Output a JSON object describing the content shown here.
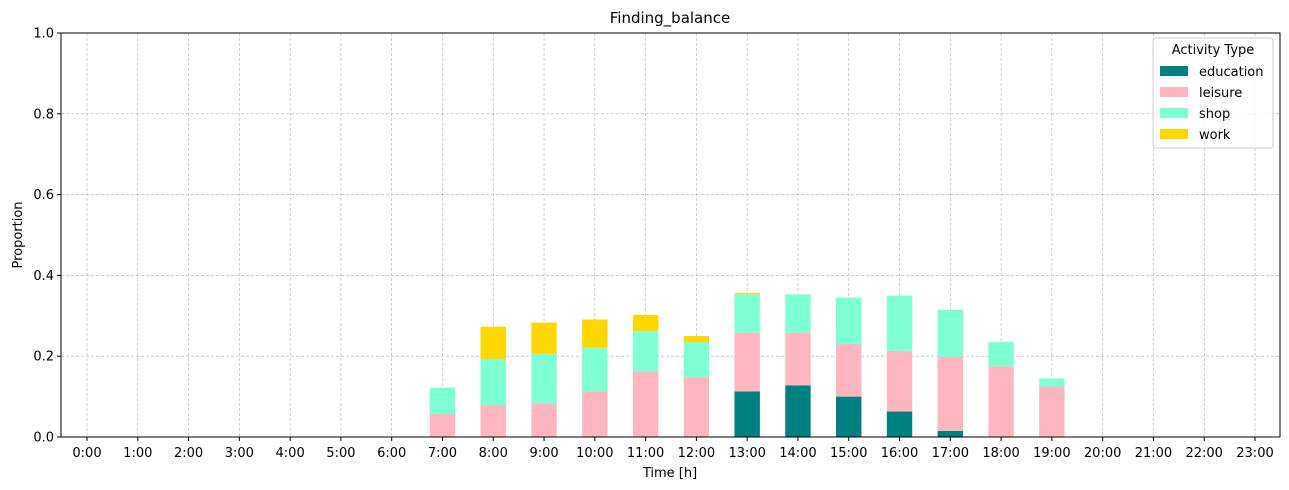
{
  "chart_data": {
    "type": "bar",
    "stacked": true,
    "title": "Finding_balance",
    "xlabel": "Time [h]",
    "ylabel": "Proportion",
    "ylim": [
      0,
      1.0
    ],
    "yticks": [
      "0.0",
      "0.2",
      "0.4",
      "0.6",
      "0.8",
      "1.0"
    ],
    "grid": true,
    "legend": {
      "title": "Activity Type",
      "placement": "top-right"
    },
    "categories": [
      "0:00",
      "1:00",
      "2:00",
      "3:00",
      "4:00",
      "5:00",
      "6:00",
      "7:00",
      "8:00",
      "9:00",
      "10:00",
      "11:00",
      "12:00",
      "13:00",
      "14:00",
      "15:00",
      "16:00",
      "17:00",
      "18:00",
      "19:00",
      "20:00",
      "21:00",
      "22:00",
      "23:00"
    ],
    "series": [
      {
        "name": "education",
        "color": "#008080",
        "values": [
          0,
          0,
          0,
          0,
          0,
          0,
          0,
          0,
          0,
          0,
          0,
          0,
          0,
          0.113,
          0.128,
          0.1,
          0.063,
          0.015,
          0,
          0,
          0,
          0,
          0,
          0
        ]
      },
      {
        "name": "leisure",
        "color": "#ffb6c1",
        "values": [
          0,
          0,
          0,
          0,
          0,
          0,
          0,
          0.057,
          0.078,
          0.083,
          0.113,
          0.162,
          0.148,
          0.145,
          0.13,
          0.13,
          0.15,
          0.183,
          0.175,
          0.125,
          0,
          0,
          0,
          0
        ]
      },
      {
        "name": "shop",
        "color": "#7fffd4",
        "values": [
          0,
          0,
          0,
          0,
          0,
          0,
          0,
          0.065,
          0.115,
          0.123,
          0.108,
          0.1,
          0.087,
          0.095,
          0.095,
          0.115,
          0.137,
          0.117,
          0.06,
          0.02,
          0,
          0,
          0,
          0
        ]
      },
      {
        "name": "work",
        "color": "#ffd700",
        "values": [
          0,
          0,
          0,
          0,
          0,
          0,
          0,
          0,
          0.08,
          0.077,
          0.07,
          0.04,
          0.015,
          0.003,
          0,
          0,
          0,
          0,
          0,
          0,
          0,
          0,
          0,
          0
        ]
      }
    ]
  }
}
